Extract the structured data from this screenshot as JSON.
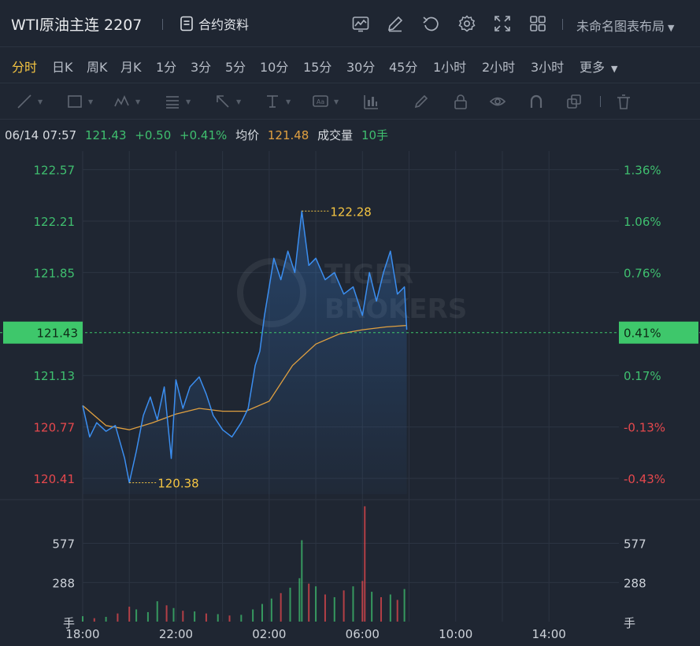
{
  "header": {
    "symbol": "WTI原油主连 2207",
    "contract_info": "合约资料",
    "layout_name": "未命名图表布局",
    "icons": [
      "chart-line-icon",
      "edit-icon",
      "undo-icon",
      "settings-icon",
      "fullscreen-icon",
      "grid-layout-icon"
    ]
  },
  "periods": {
    "items": [
      "分时",
      "日K",
      "周K",
      "月K",
      "1分",
      "3分",
      "5分",
      "10分",
      "15分",
      "30分",
      "45分",
      "1小时",
      "2小时",
      "3小时",
      "更多"
    ],
    "active": "分时"
  },
  "draw_tools": [
    "line-tool-icon",
    "rectangle-tool-icon",
    "wave-tool-icon",
    "fib-tool-icon",
    "arrow-tool-icon",
    "measure-tool-icon",
    "text-tool-icon",
    "indicator-tool-icon",
    "brush-icon",
    "lock-icon",
    "eye-icon",
    "magnet-icon",
    "copy-icon",
    "trash-icon"
  ],
  "info": {
    "datetime": "06/14 07:57",
    "price": "121.43",
    "change": "+0.50",
    "change_pct": "+0.41%",
    "avg_label": "均价",
    "avg_value": "121.48",
    "volume_label": "成交量",
    "volume_value": "10手"
  },
  "watermark": [
    "TIGER",
    "BROKERS"
  ],
  "colors": {
    "up": "#3fbf6f",
    "down": "#e5484d",
    "price_line": "#3b8ef0",
    "avg_line": "#e0a040",
    "highlight": "#f5c542",
    "current_tag": "#3ec76b"
  },
  "chart_data": {
    "type": "line",
    "ylim": [
      120.3,
      122.7
    ],
    "y_ticks_left": [
      "122.57",
      "122.21",
      "121.85",
      "121.13",
      "120.77",
      "120.41"
    ],
    "y_ticks_right": [
      "1.36%",
      "1.06%",
      "0.76%",
      "0.17%",
      "-0.13%",
      "-0.43%"
    ],
    "y_tick_values": [
      122.57,
      122.21,
      121.85,
      121.13,
      120.77,
      120.41
    ],
    "x_ticks": [
      "18:00",
      "22:00",
      "02:00",
      "06:00",
      "10:00",
      "14:00"
    ],
    "x_tick_hours": [
      0,
      4,
      8,
      12,
      16,
      20
    ],
    "x_range_hours": [
      0,
      23
    ],
    "current_price_label": "121.43",
    "current_pct_label": "0.41%",
    "current_price": 121.43,
    "high": {
      "value": 122.28,
      "label": "122.28",
      "hour": 9.4
    },
    "low": {
      "value": 120.38,
      "label": "120.38",
      "hour": 2.0
    },
    "price_series": {
      "name": "",
      "x_hours": [
        0,
        0.3,
        0.6,
        1.0,
        1.4,
        1.8,
        2.0,
        2.3,
        2.6,
        2.9,
        3.2,
        3.5,
        3.8,
        4.0,
        4.3,
        4.6,
        5.0,
        5.3,
        5.6,
        6.0,
        6.4,
        6.8,
        7.1,
        7.4,
        7.6,
        7.8,
        8.0,
        8.2,
        8.5,
        8.8,
        9.1,
        9.4,
        9.7,
        10.0,
        10.4,
        10.8,
        11.2,
        11.6,
        12.0,
        12.3,
        12.6,
        12.9,
        13.2,
        13.5,
        13.8,
        13.9
      ],
      "values": [
        120.92,
        120.7,
        120.8,
        120.74,
        120.78,
        120.55,
        120.38,
        120.6,
        120.85,
        120.98,
        120.82,
        121.05,
        120.55,
        121.1,
        120.9,
        121.05,
        121.12,
        121.0,
        120.85,
        120.75,
        120.7,
        120.8,
        120.9,
        121.2,
        121.3,
        121.55,
        121.75,
        121.95,
        121.8,
        122.0,
        121.85,
        122.28,
        121.9,
        121.95,
        121.8,
        121.85,
        121.7,
        121.75,
        121.55,
        121.85,
        121.65,
        121.85,
        122.0,
        121.7,
        121.75,
        121.45
      ],
      "unit": ""
    },
    "avg_series": {
      "name": "",
      "x_hours": [
        0,
        1.0,
        2.0,
        3.0,
        4.0,
        5.0,
        6.0,
        7.0,
        8.0,
        9.0,
        10.0,
        11.0,
        12.0,
        13.0,
        13.9
      ],
      "values": [
        120.92,
        120.78,
        120.75,
        120.8,
        120.86,
        120.9,
        120.88,
        120.88,
        120.95,
        121.2,
        121.35,
        121.42,
        121.45,
        121.47,
        121.48
      ]
    },
    "volume": {
      "y_ticks": [
        "577",
        "288"
      ],
      "y_tick_values": [
        577,
        288
      ],
      "ymax": 870,
      "unit_label": "手",
      "bars": [
        {
          "hour": 0.0,
          "value": 40,
          "dir": "up"
        },
        {
          "hour": 0.5,
          "value": 25,
          "dir": "down"
        },
        {
          "hour": 1.0,
          "value": 35,
          "dir": "up"
        },
        {
          "hour": 1.5,
          "value": 60,
          "dir": "down"
        },
        {
          "hour": 2.0,
          "value": 110,
          "dir": "down"
        },
        {
          "hour": 2.3,
          "value": 90,
          "dir": "up"
        },
        {
          "hour": 2.8,
          "value": 70,
          "dir": "up"
        },
        {
          "hour": 3.2,
          "value": 150,
          "dir": "up"
        },
        {
          "hour": 3.6,
          "value": 120,
          "dir": "down"
        },
        {
          "hour": 3.9,
          "value": 100,
          "dir": "up"
        },
        {
          "hour": 4.3,
          "value": 80,
          "dir": "down"
        },
        {
          "hour": 4.8,
          "value": 75,
          "dir": "up"
        },
        {
          "hour": 5.3,
          "value": 60,
          "dir": "down"
        },
        {
          "hour": 5.8,
          "value": 55,
          "dir": "up"
        },
        {
          "hour": 6.3,
          "value": 45,
          "dir": "down"
        },
        {
          "hour": 6.8,
          "value": 50,
          "dir": "up"
        },
        {
          "hour": 7.3,
          "value": 90,
          "dir": "up"
        },
        {
          "hour": 7.7,
          "value": 130,
          "dir": "up"
        },
        {
          "hour": 8.1,
          "value": 170,
          "dir": "up"
        },
        {
          "hour": 8.5,
          "value": 210,
          "dir": "down"
        },
        {
          "hour": 8.9,
          "value": 250,
          "dir": "up"
        },
        {
          "hour": 9.3,
          "value": 320,
          "dir": "up"
        },
        {
          "hour": 9.4,
          "value": 600,
          "dir": "up"
        },
        {
          "hour": 9.7,
          "value": 280,
          "dir": "down"
        },
        {
          "hour": 10.0,
          "value": 260,
          "dir": "up"
        },
        {
          "hour": 10.4,
          "value": 200,
          "dir": "down"
        },
        {
          "hour": 10.8,
          "value": 180,
          "dir": "up"
        },
        {
          "hour": 11.2,
          "value": 230,
          "dir": "down"
        },
        {
          "hour": 11.6,
          "value": 260,
          "dir": "up"
        },
        {
          "hour": 12.0,
          "value": 300,
          "dir": "down"
        },
        {
          "hour": 12.1,
          "value": 850,
          "dir": "down"
        },
        {
          "hour": 12.4,
          "value": 220,
          "dir": "up"
        },
        {
          "hour": 12.8,
          "value": 180,
          "dir": "down"
        },
        {
          "hour": 13.2,
          "value": 200,
          "dir": "up"
        },
        {
          "hour": 13.5,
          "value": 160,
          "dir": "down"
        },
        {
          "hour": 13.8,
          "value": 240,
          "dir": "up"
        }
      ]
    }
  }
}
